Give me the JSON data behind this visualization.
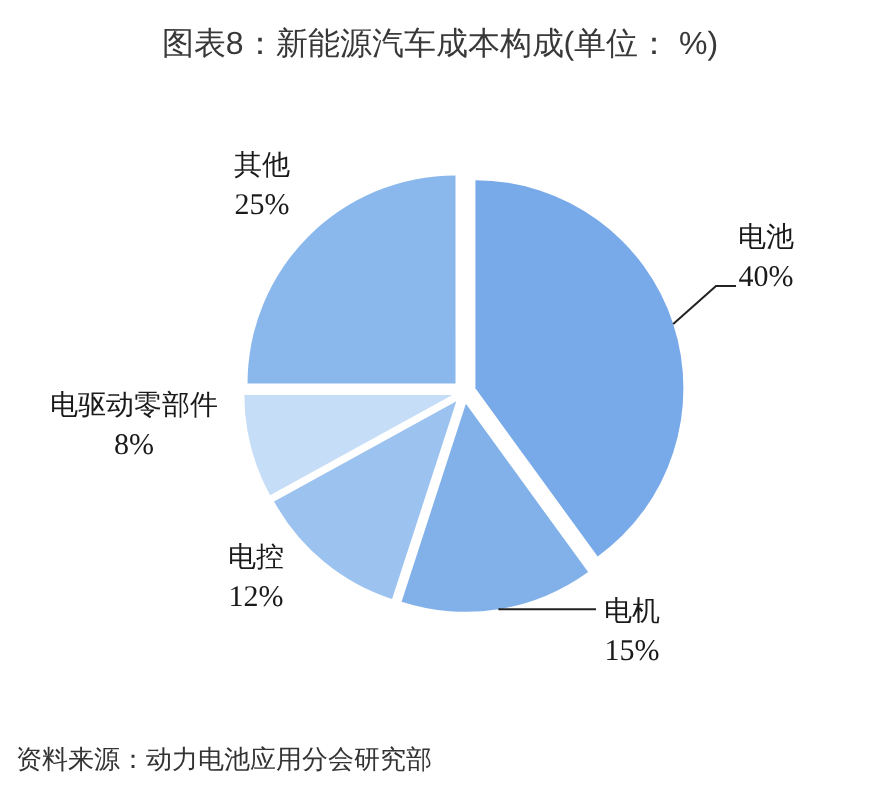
{
  "chart_data": {
    "type": "pie",
    "title": "图表8：新能源汽车成本构成(单位： %)",
    "categories": [
      "电池",
      "电机",
      "电控",
      "电驱动零部件",
      "其他"
    ],
    "values": [
      40,
      15,
      12,
      8,
      25
    ],
    "colors": [
      "#78a9e8",
      "#82b1ea",
      "#9cc2ef",
      "#c6ddf7",
      "#8ab7ec"
    ],
    "value_labels": [
      "40%",
      "15%",
      "12%",
      "8%",
      "25%"
    ],
    "annotations": [
      "资料来源：动力电池应用分会研究部"
    ]
  }
}
